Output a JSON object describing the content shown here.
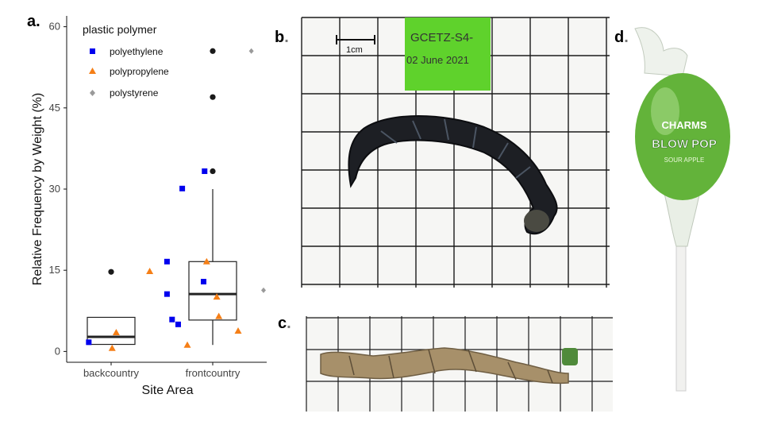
{
  "panels": {
    "a": "a",
    "b": "b",
    "c": "c",
    "d": "d",
    "dot": "."
  },
  "photo_b": {
    "scale_label": "1cm",
    "tag_line1": "GCETZ-S4-",
    "tag_line2": "02 June 2021"
  },
  "photo_d": {
    "brand": "CHARMS",
    "product": "BLOW POP",
    "flavor": "SOUR APPLE"
  },
  "colors": {
    "polyethylene": "#0000ee",
    "polypropylene": "#f57f17",
    "polystyrene": "#9a9a9a",
    "outlier": "#1a1a1a",
    "grid_bg": "#f7f7f5",
    "grid_line": "#1b1b1b",
    "green_tag": "#5fd22c",
    "lolli_green": "#63b33a"
  },
  "chart_data": {
    "type": "box",
    "xlabel": "Site Area",
    "ylabel": "Relative Frequency by Weight (%)",
    "ylim": [
      -2,
      62
    ],
    "yticks": [
      0,
      15,
      30,
      45,
      60
    ],
    "categories": [
      "backcountry",
      "frontcountry"
    ],
    "legend": {
      "title": "plastic polymer",
      "placement": "top-left",
      "entries": [
        "polyethylene",
        "polypropylene",
        "polystyrene"
      ]
    },
    "boxes": [
      {
        "category": "backcountry",
        "q1": 1.3,
        "median": 2.7,
        "q3": 6.3,
        "whisker_low": 1.3,
        "whisker_high": 6.3,
        "outliers": [
          14.7
        ]
      },
      {
        "category": "frontcountry",
        "q1": 5.8,
        "median": 10.6,
        "q3": 16.6,
        "whisker_low": 1.2,
        "whisker_high": 30.0,
        "outliers": [
          33.3,
          47.0,
          55.5
        ]
      }
    ],
    "series": [
      {
        "name": "polyethylene",
        "marker": "square",
        "points": [
          {
            "category": "backcountry",
            "offset": -0.22,
            "y": 1.7
          },
          {
            "category": "frontcountry",
            "offset": -0.45,
            "y": 16.6
          },
          {
            "category": "frontcountry",
            "offset": -0.45,
            "y": 10.6
          },
          {
            "category": "frontcountry",
            "offset": -0.4,
            "y": 5.9
          },
          {
            "category": "frontcountry",
            "offset": -0.34,
            "y": 5.0
          },
          {
            "category": "frontcountry",
            "offset": -0.3,
            "y": 30.1
          },
          {
            "category": "frontcountry",
            "offset": -0.08,
            "y": 33.3
          },
          {
            "category": "frontcountry",
            "offset": -0.09,
            "y": 12.9
          }
        ]
      },
      {
        "name": "polypropylene",
        "marker": "triangle",
        "points": [
          {
            "category": "backcountry",
            "offset": 0.05,
            "y": 3.5
          },
          {
            "category": "backcountry",
            "offset": 0.01,
            "y": 0.6
          },
          {
            "category": "backcountry",
            "offset": 0.38,
            "y": 14.8
          },
          {
            "category": "frontcountry",
            "offset": -0.25,
            "y": 1.2
          },
          {
            "category": "frontcountry",
            "offset": -0.06,
            "y": 16.6
          },
          {
            "category": "frontcountry",
            "offset": 0.04,
            "y": 10.1
          },
          {
            "category": "frontcountry",
            "offset": 0.06,
            "y": 6.5
          },
          {
            "category": "frontcountry",
            "offset": 0.25,
            "y": 3.8
          }
        ]
      },
      {
        "name": "polystyrene",
        "marker": "diamond",
        "points": [
          {
            "category": "frontcountry",
            "offset": 0.5,
            "y": 11.3
          },
          {
            "category": "frontcountry",
            "offset": 0.38,
            "y": 55.5
          }
        ]
      }
    ]
  }
}
